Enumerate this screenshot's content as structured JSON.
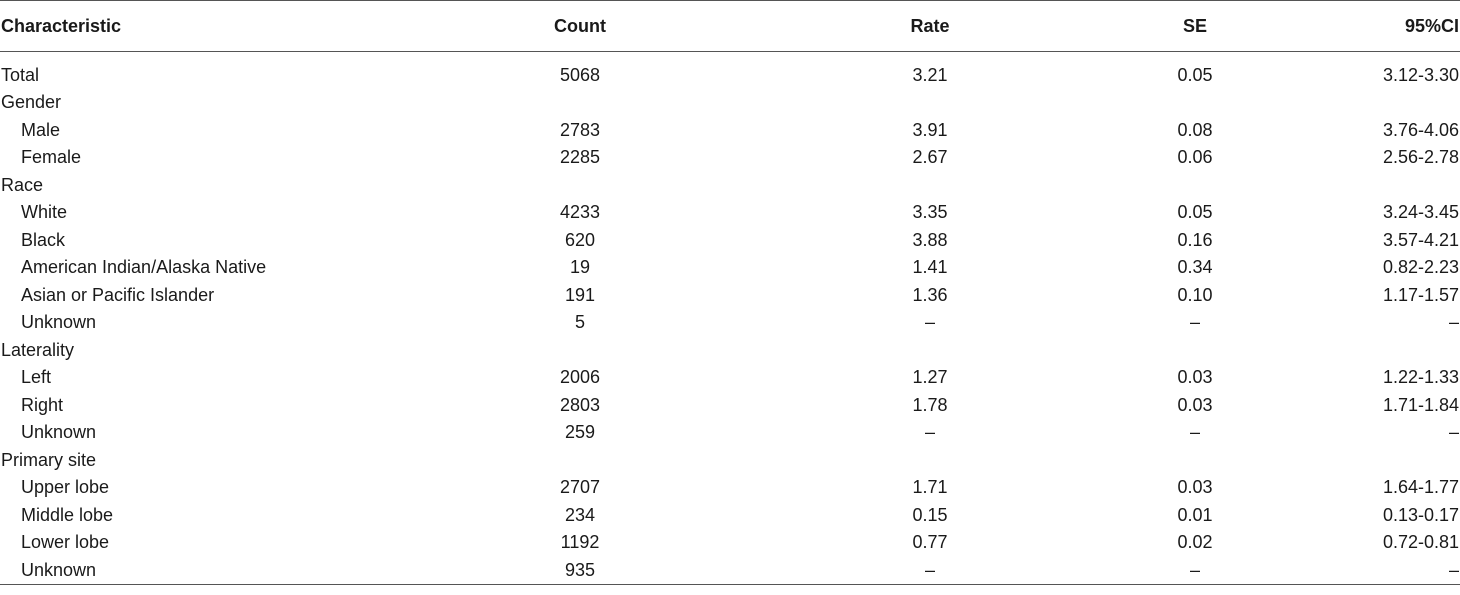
{
  "table": {
    "headers": {
      "characteristic": "Characteristic",
      "count": "Count",
      "rate": "Rate",
      "se": "SE",
      "ci": "95%CI"
    },
    "rows": [
      {
        "label": "Total",
        "indent": false,
        "count": "5068",
        "rate": "3.21",
        "se": "0.05",
        "ci": "3.12-3.30"
      },
      {
        "label": "Gender",
        "indent": false,
        "count": "",
        "rate": "",
        "se": "",
        "ci": ""
      },
      {
        "label": "Male",
        "indent": true,
        "count": "2783",
        "rate": "3.91",
        "se": "0.08",
        "ci": "3.76-4.06"
      },
      {
        "label": "Female",
        "indent": true,
        "count": "2285",
        "rate": "2.67",
        "se": "0.06",
        "ci": "2.56-2.78"
      },
      {
        "label": "Race",
        "indent": false,
        "count": "",
        "rate": "",
        "se": "",
        "ci": ""
      },
      {
        "label": "White",
        "indent": true,
        "count": "4233",
        "rate": "3.35",
        "se": "0.05",
        "ci": "3.24-3.45"
      },
      {
        "label": "Black",
        "indent": true,
        "count": "620",
        "rate": "3.88",
        "se": "0.16",
        "ci": "3.57-4.21"
      },
      {
        "label": "American Indian/Alaska Native",
        "indent": true,
        "count": "19",
        "rate": "1.41",
        "se": "0.34",
        "ci": "0.82-2.23"
      },
      {
        "label": "Asian or Pacific Islander",
        "indent": true,
        "count": "191",
        "rate": "1.36",
        "se": "0.10",
        "ci": "1.17-1.57"
      },
      {
        "label": "Unknown",
        "indent": true,
        "count": "5",
        "rate": "–",
        "se": "–",
        "ci": "–"
      },
      {
        "label": "Laterality",
        "indent": false,
        "count": "",
        "rate": "",
        "se": "",
        "ci": ""
      },
      {
        "label": "Left",
        "indent": true,
        "count": "2006",
        "rate": "1.27",
        "se": "0.03",
        "ci": "1.22-1.33"
      },
      {
        "label": "Right",
        "indent": true,
        "count": "2803",
        "rate": "1.78",
        "se": "0.03",
        "ci": "1.71-1.84"
      },
      {
        "label": "Unknown",
        "indent": true,
        "count": "259",
        "rate": "–",
        "se": "–",
        "ci": "–"
      },
      {
        "label": "Primary site",
        "indent": false,
        "count": "",
        "rate": "",
        "se": "",
        "ci": ""
      },
      {
        "label": "Upper lobe",
        "indent": true,
        "count": "2707",
        "rate": "1.71",
        "se": "0.03",
        "ci": "1.64-1.77"
      },
      {
        "label": "Middle lobe",
        "indent": true,
        "count": "234",
        "rate": "0.15",
        "se": "0.01",
        "ci": "0.13-0.17"
      },
      {
        "label": "Lower lobe",
        "indent": true,
        "count": "1192",
        "rate": "0.77",
        "se": "0.02",
        "ci": "0.72-0.81"
      },
      {
        "label": "Unknown",
        "indent": true,
        "count": "935",
        "rate": "–",
        "se": "–",
        "ci": "–"
      }
    ]
  }
}
